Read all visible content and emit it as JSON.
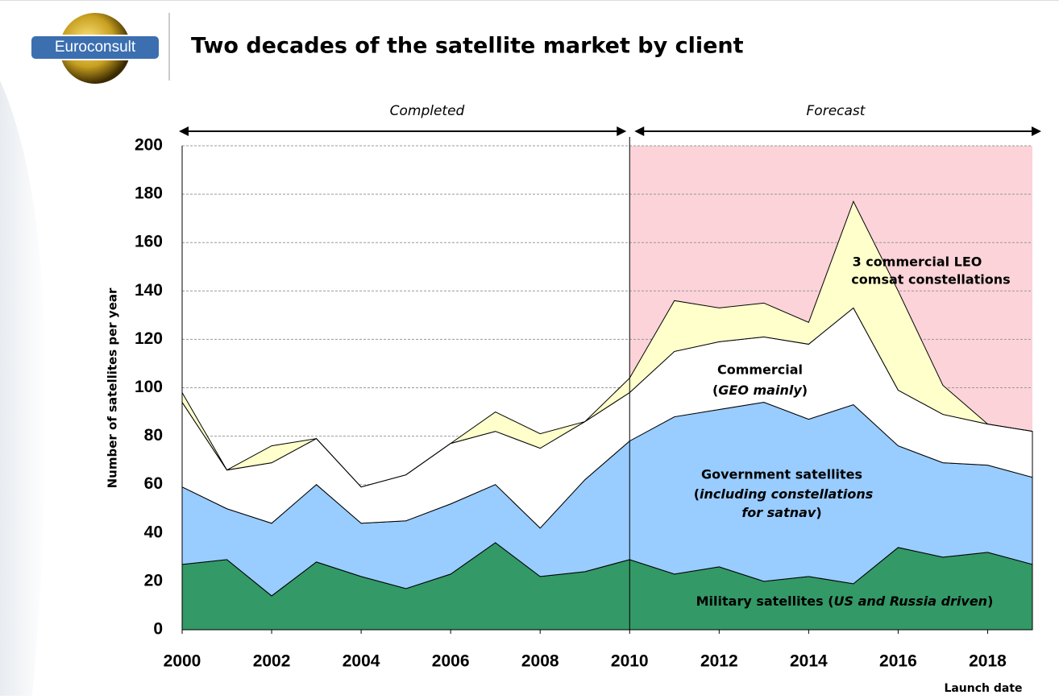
{
  "logo": "Euroconsult",
  "chart_data": {
    "type": "stacked_area",
    "title": "Two decades of the satellite market by client",
    "y_label": "Number of satellites per year",
    "x_label": "Launch date",
    "periods": [
      "Completed",
      "Forecast"
    ],
    "x": [
      2000,
      2001,
      2002,
      2003,
      2004,
      2005,
      2006,
      2007,
      2008,
      2009,
      2010,
      2011,
      2012,
      2013,
      2014,
      2015,
      2016,
      2017,
      2018,
      2019
    ],
    "series": [
      {
        "name": "Military satellites",
        "color": "#339966",
        "values": [
          27,
          29,
          14,
          28,
          22,
          17,
          23,
          36,
          22,
          24,
          29,
          23,
          26,
          20,
          22,
          19,
          34,
          30,
          32,
          27
        ]
      },
      {
        "name": "Government satellites",
        "color": "#99ccff",
        "values": [
          32,
          21,
          30,
          32,
          22,
          28,
          29,
          24,
          20,
          38,
          49,
          65,
          65,
          74,
          65,
          74,
          42,
          39,
          36,
          36
        ]
      },
      {
        "name": "Commercial",
        "color": "#ffffff",
        "values": [
          35,
          16,
          25,
          19,
          15,
          19,
          25,
          22,
          33,
          24,
          20,
          27,
          28,
          27,
          31,
          40,
          23,
          20,
          17,
          19
        ]
      },
      {
        "name": "3 commercial LEO",
        "color": "#ffffcc",
        "values": [
          4,
          0,
          7,
          0,
          0,
          0,
          0,
          8,
          6,
          0,
          6,
          21,
          14,
          14,
          9,
          44,
          41,
          12,
          0,
          0
        ]
      }
    ],
    "military_note": [
      "(",
      "US and Russia driven",
      ")"
    ],
    "government_note": [
      "(",
      "including constellations",
      "for satnav",
      ")"
    ],
    "commercial_note": [
      "(",
      "GEO mainly",
      ")"
    ],
    "leo_note": "comsat constellations",
    "forecast_start": 2010,
    "xlim": [
      2000,
      2019
    ],
    "xticks": [
      2000,
      2002,
      2004,
      2006,
      2008,
      2010,
      2012,
      2014,
      2016,
      2018
    ],
    "ylim": [
      0,
      200
    ],
    "yticks": [
      0,
      20,
      40,
      60,
      80,
      100,
      120,
      140,
      160,
      180,
      200
    ],
    "grid": true
  }
}
